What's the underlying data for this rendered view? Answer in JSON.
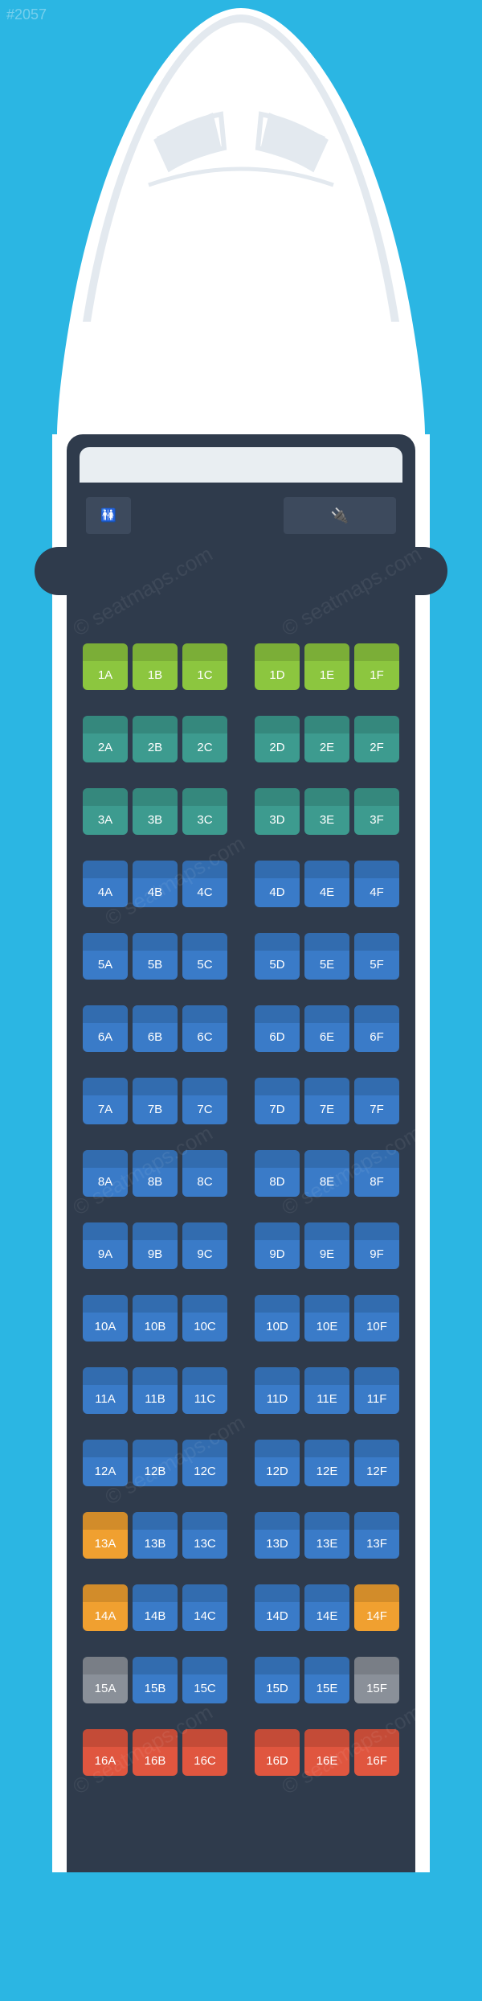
{
  "meta": {
    "watermark_id": "#2057",
    "watermark_text": "© seatmaps.com",
    "background_color": "#2bb6e3",
    "fuselage_color": "#ffffff",
    "cabin_color": "#2f3b4c"
  },
  "seatmap": {
    "type": "seatmap",
    "columns_left": [
      "A",
      "B",
      "C"
    ],
    "columns_right": [
      "D",
      "E",
      "F"
    ],
    "seat_colors": {
      "green": "#8cc63f",
      "teal": "#3d9b8f",
      "blue": "#3a7bc8",
      "orange": "#f0a030",
      "gray": "#8a9099",
      "red": "#e0563f"
    },
    "label_color": "#ffffff",
    "label_fontsize": 15,
    "row_gap": 32,
    "seat_width": 56,
    "seat_height": 58,
    "aisle_gap": 28,
    "rows": [
      {
        "n": 1,
        "left": [
          "green",
          "green",
          "green"
        ],
        "right": [
          "green",
          "green",
          "green"
        ]
      },
      {
        "n": 2,
        "left": [
          "teal",
          "teal",
          "teal"
        ],
        "right": [
          "teal",
          "teal",
          "teal"
        ]
      },
      {
        "n": 3,
        "left": [
          "teal",
          "teal",
          "teal"
        ],
        "right": [
          "teal",
          "teal",
          "teal"
        ]
      },
      {
        "n": 4,
        "left": [
          "blue",
          "blue",
          "blue"
        ],
        "right": [
          "blue",
          "blue",
          "blue"
        ]
      },
      {
        "n": 5,
        "left": [
          "blue",
          "blue",
          "blue"
        ],
        "right": [
          "blue",
          "blue",
          "blue"
        ]
      },
      {
        "n": 6,
        "left": [
          "blue",
          "blue",
          "blue"
        ],
        "right": [
          "blue",
          "blue",
          "blue"
        ]
      },
      {
        "n": 7,
        "left": [
          "blue",
          "blue",
          "blue"
        ],
        "right": [
          "blue",
          "blue",
          "blue"
        ]
      },
      {
        "n": 8,
        "left": [
          "blue",
          "blue",
          "blue"
        ],
        "right": [
          "blue",
          "blue",
          "blue"
        ]
      },
      {
        "n": 9,
        "left": [
          "blue",
          "blue",
          "blue"
        ],
        "right": [
          "blue",
          "blue",
          "blue"
        ]
      },
      {
        "n": 10,
        "left": [
          "blue",
          "blue",
          "blue"
        ],
        "right": [
          "blue",
          "blue",
          "blue"
        ]
      },
      {
        "n": 11,
        "left": [
          "blue",
          "blue",
          "blue"
        ],
        "right": [
          "blue",
          "blue",
          "blue"
        ]
      },
      {
        "n": 12,
        "left": [
          "blue",
          "blue",
          "blue"
        ],
        "right": [
          "blue",
          "blue",
          "blue"
        ]
      },
      {
        "n": 13,
        "left": [
          "orange",
          "blue",
          "blue"
        ],
        "right": [
          "blue",
          "blue",
          "blue"
        ]
      },
      {
        "n": 14,
        "left": [
          "orange",
          "blue",
          "blue"
        ],
        "right": [
          "blue",
          "blue",
          "orange"
        ]
      },
      {
        "n": 15,
        "left": [
          "gray",
          "blue",
          "blue"
        ],
        "right": [
          "blue",
          "blue",
          "gray"
        ]
      },
      {
        "n": 16,
        "left": [
          "red",
          "red",
          "red"
        ],
        "right": [
          "red",
          "red",
          "red"
        ]
      }
    ]
  },
  "front": {
    "lavatory_icon": "🚻",
    "galley_icon": "🔌"
  }
}
